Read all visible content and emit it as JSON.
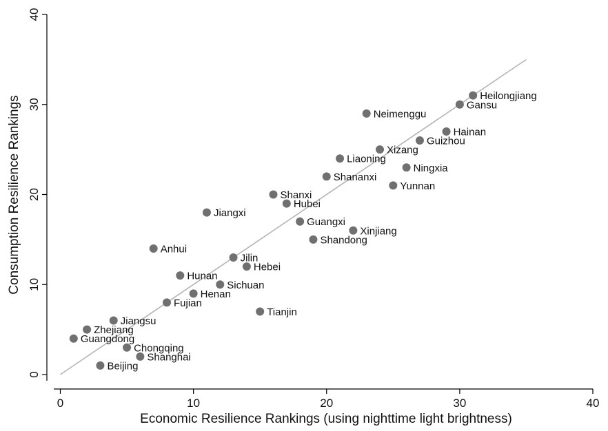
{
  "chart_data": {
    "type": "scatter",
    "xlabel": "Economic Resilience Rankings (using nighttime light brightness)",
    "ylabel": "Consumption Resilience Rankings",
    "xlim": [
      0,
      40
    ],
    "ylim": [
      0,
      40
    ],
    "xticks": [
      "0",
      "10",
      "20",
      "30",
      "40"
    ],
    "yticks": [
      "0",
      "10",
      "20",
      "30",
      "40"
    ],
    "grid": false,
    "legend": "none",
    "colors": {
      "point": "#707070",
      "fit_line": "#b4b4b4",
      "axis": "#000000"
    },
    "fit_line": {
      "x": [
        0,
        35
      ],
      "y": [
        0,
        35
      ]
    },
    "points": [
      {
        "label": "Heilongjiang",
        "x": 31,
        "y": 31
      },
      {
        "label": "Gansu",
        "x": 30,
        "y": 30
      },
      {
        "label": "Neimenggu",
        "x": 23,
        "y": 29
      },
      {
        "label": "Hainan",
        "x": 29,
        "y": 27
      },
      {
        "label": "Guizhou",
        "x": 27,
        "y": 26
      },
      {
        "label": "Xizang",
        "x": 24,
        "y": 25
      },
      {
        "label": "Liaoning",
        "x": 21,
        "y": 24
      },
      {
        "label": "Ningxia",
        "x": 26,
        "y": 23
      },
      {
        "label": "Shananxi",
        "x": 20,
        "y": 22
      },
      {
        "label": "Yunnan",
        "x": 25,
        "y": 21
      },
      {
        "label": "Shanxi",
        "x": 16,
        "y": 20
      },
      {
        "label": "Hubei",
        "x": 17,
        "y": 19
      },
      {
        "label": "Jiangxi",
        "x": 11,
        "y": 18
      },
      {
        "label": "Guangxi",
        "x": 18,
        "y": 17
      },
      {
        "label": "Xinjiang",
        "x": 22,
        "y": 16
      },
      {
        "label": "Shandong",
        "x": 19,
        "y": 15
      },
      {
        "label": "Anhui",
        "x": 7,
        "y": 14
      },
      {
        "label": "Jilin",
        "x": 13,
        "y": 13
      },
      {
        "label": "Hebei",
        "x": 14,
        "y": 12
      },
      {
        "label": "Hunan",
        "x": 9,
        "y": 11
      },
      {
        "label": "Sichuan",
        "x": 12,
        "y": 10
      },
      {
        "label": "Henan",
        "x": 10,
        "y": 9
      },
      {
        "label": "Fujian",
        "x": 8,
        "y": 8
      },
      {
        "label": "Tianjin",
        "x": 15,
        "y": 7
      },
      {
        "label": "Jiangsu",
        "x": 4,
        "y": 6
      },
      {
        "label": "Zhejiang",
        "x": 2,
        "y": 5
      },
      {
        "label": "Guangdong",
        "x": 1,
        "y": 4
      },
      {
        "label": "Chongqing",
        "x": 5,
        "y": 3
      },
      {
        "label": "Shanghai",
        "x": 6,
        "y": 2
      },
      {
        "label": "Beijing",
        "x": 3,
        "y": 1
      }
    ]
  }
}
